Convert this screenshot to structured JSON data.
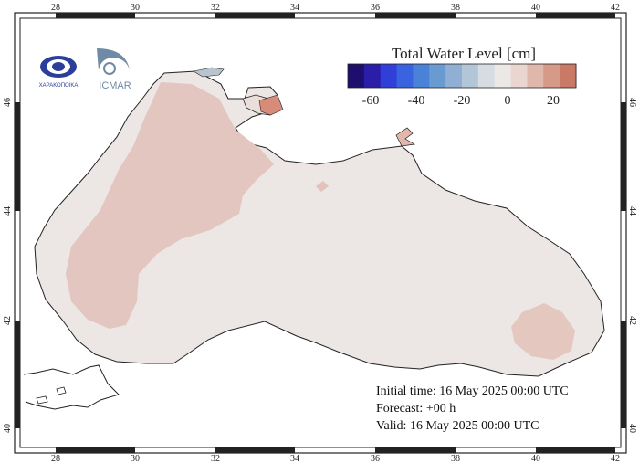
{
  "legend": {
    "title": "Total Water Level [cm]",
    "ticks": [
      "-60",
      "-40",
      "-20",
      "0",
      "20"
    ],
    "colors": [
      "#1e0f6e",
      "#2a1ea8",
      "#2f3fd8",
      "#3a63e0",
      "#4a82d8",
      "#6a9bd0",
      "#8fb0d4",
      "#b3c6d8",
      "#d6dce2",
      "#ece8e6",
      "#ead6d0",
      "#e0b8ab",
      "#d69a88",
      "#c97a66"
    ]
  },
  "axes": {
    "lon_ticks": [
      "28",
      "30",
      "32",
      "34",
      "36",
      "38",
      "40",
      "42"
    ],
    "lat_ticks": [
      "40",
      "42",
      "44",
      "46"
    ]
  },
  "logos": {
    "left": {
      "text": "ΧΑΡΑΚΟΠΟΙΚΑ",
      "icon": "wave-eye-logo"
    },
    "right": {
      "text": "ICMAR",
      "icon": "institute-logo"
    }
  },
  "info": {
    "initial": "Initial time: 16 May 2025 00:00 UTC",
    "forecast": "Forecast: +00 h",
    "valid": "Valid: 16 May 2025 00:00 UTC"
  }
}
